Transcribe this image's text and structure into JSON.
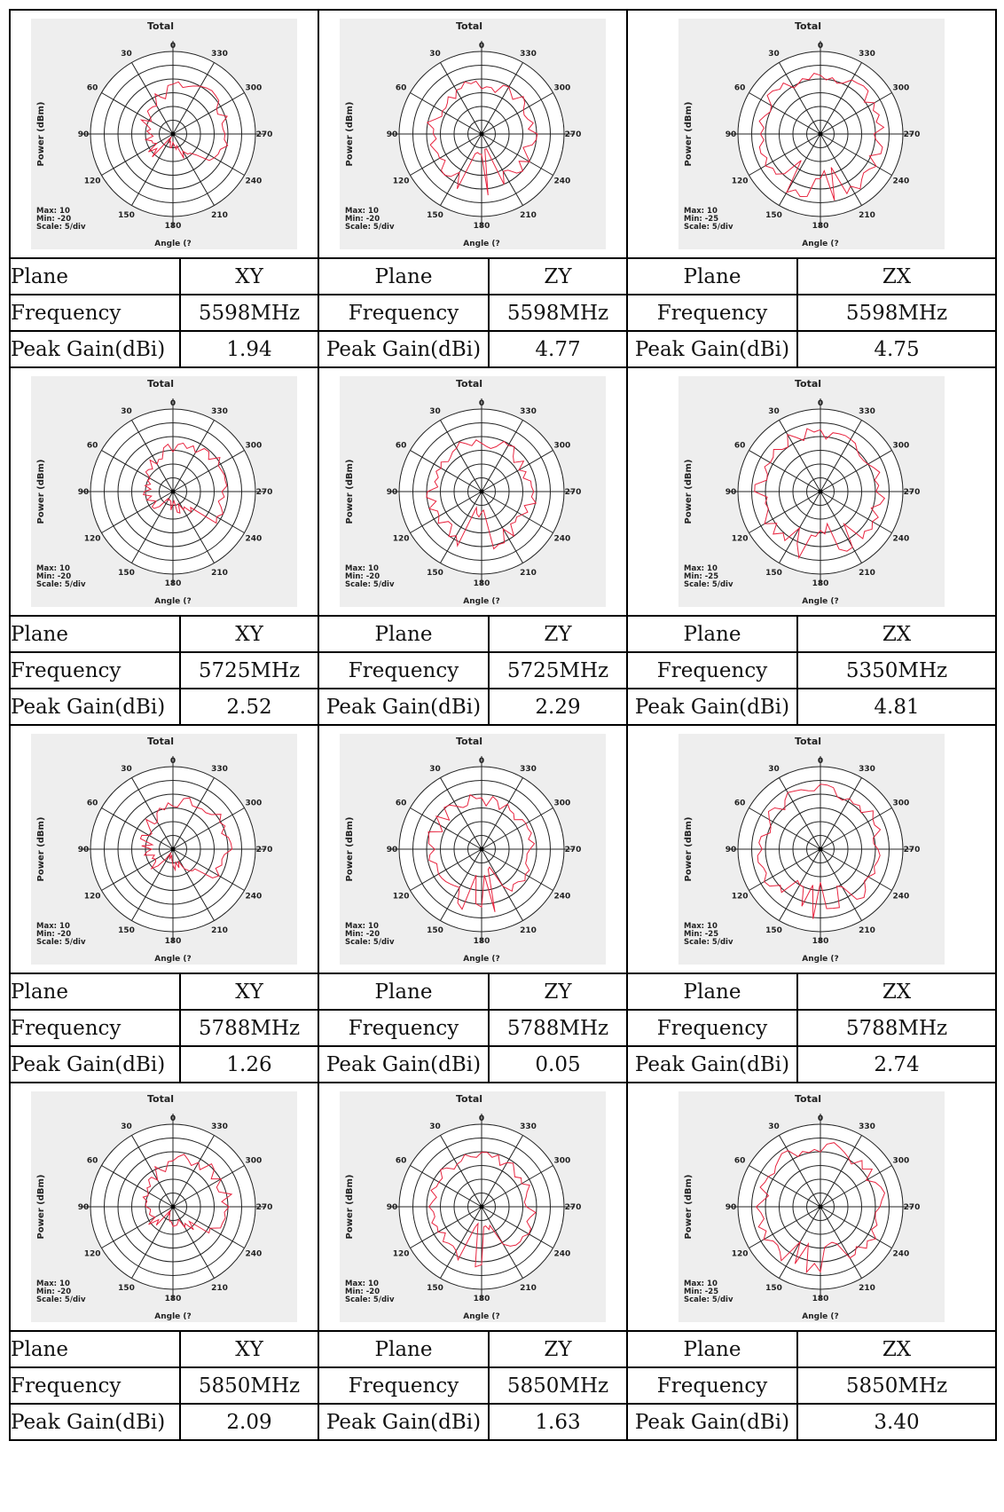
{
  "common_plot_text": {
    "title": "Total",
    "y_label": "Power (dBm)",
    "x_label": "Angle (?",
    "scale": "Scale: 5/div",
    "angle_labels": [
      "0",
      "30",
      "60",
      "90",
      "120",
      "150",
      "180",
      "210",
      "240",
      "270",
      "300",
      "330"
    ]
  },
  "row_labels": {
    "plane": "Plane",
    "frequency": "Frequency",
    "peak_gain": "Peak Gain(dBi)"
  },
  "blocks": [
    {
      "cells": [
        {
          "plane": "XY",
          "frequency": "5598MHz",
          "peak_gain": "1.94",
          "max": "Max: 10",
          "min": "Min: -20"
        },
        {
          "plane": "ZY",
          "frequency": "5598MHz",
          "peak_gain": "4.77",
          "max": "Max: 10",
          "min": "Min: -20"
        },
        {
          "plane": "ZX",
          "frequency": "5598MHz",
          "peak_gain": "4.75",
          "max": "Max: 10",
          "min": "Min: -25"
        }
      ]
    },
    {
      "cells": [
        {
          "plane": "XY",
          "frequency": "5725MHz",
          "peak_gain": "2.52",
          "max": "Max: 10",
          "min": "Min: -20"
        },
        {
          "plane": "ZY",
          "frequency": "5725MHz",
          "peak_gain": "2.29",
          "max": "Max: 10",
          "min": "Min: -20"
        },
        {
          "plane": "ZX",
          "frequency": "5350MHz",
          "peak_gain": "4.81",
          "max": "Max: 10",
          "min": "Min: -25"
        }
      ]
    },
    {
      "cells": [
        {
          "plane": "XY",
          "frequency": "5788MHz",
          "peak_gain": "1.26",
          "max": "Max: 10",
          "min": "Min: -20"
        },
        {
          "plane": "ZY",
          "frequency": "5788MHz",
          "peak_gain": "0.05",
          "max": "Max: 10",
          "min": "Min: -20"
        },
        {
          "plane": "ZX",
          "frequency": "5788MHz",
          "peak_gain": "2.74",
          "max": "Max: 10",
          "min": "Min: -25"
        }
      ]
    },
    {
      "cells": [
        {
          "plane": "XY",
          "frequency": "5850MHz",
          "peak_gain": "2.09",
          "max": "Max: 10",
          "min": "Min: -20"
        },
        {
          "plane": "ZY",
          "frequency": "5850MHz",
          "peak_gain": "1.63",
          "max": "Max: 10",
          "min": "Min: -20"
        },
        {
          "plane": "ZX",
          "frequency": "5850MHz",
          "peak_gain": "3.40",
          "max": "Max: 10",
          "min": "Min: -25"
        }
      ]
    }
  ],
  "colors": {
    "trace": "#e8243f",
    "plot_background": "#eeeeee",
    "grid": "#222222"
  }
}
